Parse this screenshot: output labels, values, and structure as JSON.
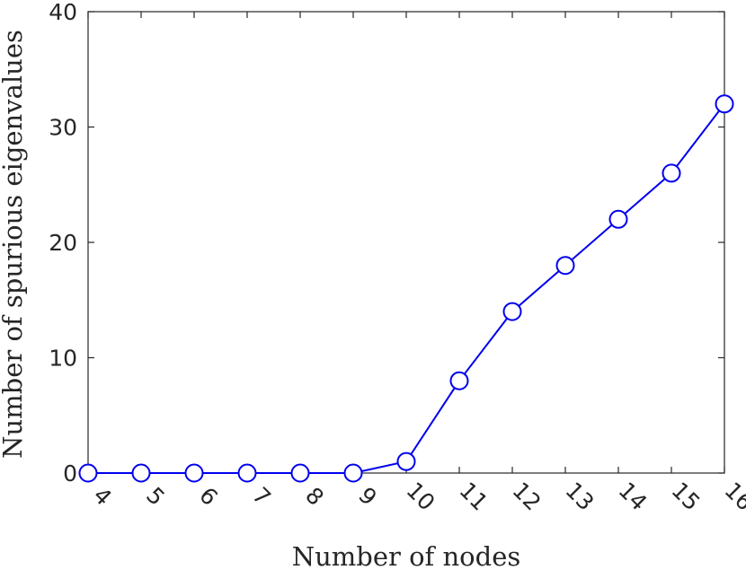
{
  "chart_data": {
    "type": "line",
    "title": "",
    "xlabel": "Number of nodes",
    "ylabel": "Number of spurious eigenvalues",
    "categories": [
      4,
      5,
      6,
      7,
      8,
      9,
      10,
      11,
      12,
      13,
      14,
      15,
      16
    ],
    "series": [
      {
        "values": [
          0,
          0,
          0,
          0,
          0,
          0,
          1,
          8,
          14,
          18,
          22,
          26,
          32
        ]
      }
    ],
    "ylim": [
      0,
      40
    ],
    "yticks": [
      0,
      10,
      20,
      30,
      40
    ],
    "xlim": [
      4,
      16
    ],
    "grid": false,
    "colors": {
      "series": "#0000ee",
      "axis": "#262626"
    },
    "marker": "open-circle"
  }
}
